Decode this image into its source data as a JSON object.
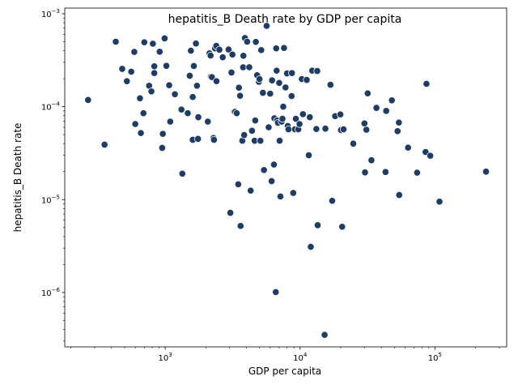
{
  "chart_data": {
    "type": "scatter",
    "title": "hepatitis_B Death rate by GDP per capita",
    "xlabel": "GDP per capita",
    "ylabel": "hepatitis_B Death rate",
    "xscale": "log",
    "yscale": "log",
    "xlim": [
      180,
      340000
    ],
    "ylim": [
      2.6e-07,
      0.00115
    ],
    "grid": false,
    "point_color": "#1f3c64",
    "x_ticks": [
      {
        "value": 1000,
        "base": "10",
        "exp": "3"
      },
      {
        "value": 10000,
        "base": "10",
        "exp": "4"
      },
      {
        "value": 100000,
        "base": "10",
        "exp": "5"
      }
    ],
    "y_ticks": [
      {
        "value": 1e-06,
        "base": "10",
        "exp": "−6"
      },
      {
        "value": 1e-05,
        "base": "10",
        "exp": "−5"
      },
      {
        "value": 0.0001,
        "base": "10",
        "exp": "−4"
      },
      {
        "value": 0.001,
        "base": "10",
        "exp": "−3"
      }
    ],
    "points": [
      [
        268,
        0.000118
      ],
      [
        355,
        3.9e-05
      ],
      [
        430,
        0.0005
      ],
      [
        480,
        0.000255
      ],
      [
        520,
        0.000188
      ],
      [
        560,
        0.000238
      ],
      [
        590,
        0.000388
      ],
      [
        600,
        6.5e-05
      ],
      [
        650,
        0.000123
      ],
      [
        660,
        5.2e-05
      ],
      [
        690,
        8.5e-05
      ],
      [
        700,
        0.000493
      ],
      [
        760,
        0.000168
      ],
      [
        790,
        0.000146
      ],
      [
        810,
        0.000476
      ],
      [
        830,
        0.000272
      ],
      [
        830,
        0.00023
      ],
      [
        910,
        0.00039
      ],
      [
        950,
        3.6e-05
      ],
      [
        960,
        5.1e-05
      ],
      [
        990,
        0.000543
      ],
      [
        1020,
        0.000275
      ],
      [
        1070,
        0.00017
      ],
      [
        1090,
        6.9e-05
      ],
      [
        1180,
        0.000136
      ],
      [
        1320,
        9.3e-05
      ],
      [
        1340,
        1.9e-05
      ],
      [
        1470,
        8.5e-05
      ],
      [
        1520,
        0.000215
      ],
      [
        1550,
        0.0004
      ],
      [
        1600,
        4.4e-05
      ],
      [
        1600,
        0.000127
      ],
      [
        1630,
        0.000274
      ],
      [
        1690,
        0.000478
      ],
      [
        1720,
        0.000168
      ],
      [
        1750,
        4.5e-05
      ],
      [
        1760,
        7.7e-05
      ],
      [
        2070,
        6.9e-05
      ],
      [
        2130,
        0.000375
      ],
      [
        2170,
        0.000355
      ],
      [
        2180,
        0.00021
      ],
      [
        2220,
        0.000208
      ],
      [
        2280,
        4.6e-05
      ],
      [
        2300,
        4.4e-05
      ],
      [
        2340,
        0.000424
      ],
      [
        2390,
        0.000451
      ],
      [
        2400,
        0.000188
      ],
      [
        2520,
        0.00041
      ],
      [
        2670,
        0.00034
      ],
      [
        2950,
        0.000412
      ],
      [
        3040,
        7.2e-06
      ],
      [
        3100,
        0.000233
      ],
      [
        3150,
        0.000364
      ],
      [
        3250,
        8.8e-05
      ],
      [
        3300,
        8.8e-05
      ],
      [
        3390,
        8.5e-05
      ],
      [
        3480,
        1.46e-05
      ],
      [
        3520,
        0.00016
      ],
      [
        3590,
        0.000131
      ],
      [
        3620,
        5.2e-06
      ],
      [
        3730,
        4.3e-05
      ],
      [
        3780,
        0.000265
      ],
      [
        3800,
        0.000353
      ],
      [
        3850,
        4.95e-05
      ],
      [
        3900,
        0.000548
      ],
      [
        4050,
        0.0005
      ],
      [
        4200,
        0.000266
      ],
      [
        4300,
        1.25e-05
      ],
      [
        4400,
        5.5e-05
      ],
      [
        4600,
        4.3e-05
      ],
      [
        4650,
        7.1e-05
      ],
      [
        4700,
        0.000498
      ],
      [
        4800,
        0.000218
      ],
      [
        4950,
        0.000185
      ],
      [
        5000,
        0.000198
      ],
      [
        5080,
        4.3e-05
      ],
      [
        5150,
        0.000406
      ],
      [
        5300,
        0.000141
      ],
      [
        5400,
        2.08e-05
      ],
      [
        5650,
        0.00074
      ],
      [
        5850,
        6e-05
      ],
      [
        6000,
        0.000138
      ],
      [
        6150,
        1.58e-05
      ],
      [
        6200,
        0.000192
      ],
      [
        6400,
        2.38e-05
      ],
      [
        6450,
        7.5e-05
      ],
      [
        6600,
        1.01e-06
      ],
      [
        6650,
        0.000424
      ],
      [
        6700,
        0.000244
      ],
      [
        6750,
        7.1e-05
      ],
      [
        6850,
        6.7e-05
      ],
      [
        7000,
        0.00018
      ],
      [
        7050,
        4.3e-05
      ],
      [
        7150,
        1.08e-05
      ],
      [
        7300,
        6.9e-05
      ],
      [
        7400,
        7.4e-05
      ],
      [
        7500,
        0.0001
      ],
      [
        7600,
        0.000428
      ],
      [
        7800,
        0.000161
      ],
      [
        8000,
        0.000228
      ],
      [
        8100,
        6.2e-05
      ],
      [
        8200,
        5.7e-05
      ],
      [
        8650,
        0.00013
      ],
      [
        8700,
        0.00023
      ],
      [
        8900,
        1.18e-05
      ],
      [
        9150,
        5.7e-05
      ],
      [
        9300,
        7.4e-05
      ],
      [
        9700,
        5.7e-05
      ],
      [
        9900,
        6.5e-05
      ],
      [
        10300,
        0.000198
      ],
      [
        10500,
        8.3e-05
      ],
      [
        11200,
        0.000194
      ],
      [
        11600,
        3e-05
      ],
      [
        11800,
        7.7e-05
      ],
      [
        12000,
        3.1e-06
      ],
      [
        12300,
        0.000244
      ],
      [
        13200,
        5.75e-05
      ],
      [
        13400,
        0.000242
      ],
      [
        13500,
        5.3e-06
      ],
      [
        15200,
        3.5e-07
      ],
      [
        15400,
        5.8e-05
      ],
      [
        16800,
        0.000172
      ],
      [
        17300,
        9.7e-06
      ],
      [
        18200,
        7.9e-05
      ],
      [
        19900,
        8.25e-05
      ],
      [
        20100,
        5.6e-05
      ],
      [
        20500,
        5.1e-06
      ],
      [
        21000,
        5.7e-05
      ],
      [
        24800,
        4e-05
      ],
      [
        30000,
        6.6e-05
      ],
      [
        30300,
        1.96e-05
      ],
      [
        31000,
        5.65e-05
      ],
      [
        31700,
        0.000139
      ],
      [
        33800,
        2.65e-05
      ],
      [
        36800,
        9.7e-05
      ],
      [
        43000,
        1.98e-05
      ],
      [
        43500,
        9e-05
      ],
      [
        47900,
        0.000117
      ],
      [
        52800,
        5.45e-05
      ],
      [
        54000,
        6.75e-05
      ],
      [
        54300,
        1.12e-05
      ],
      [
        63200,
        3.62e-05
      ],
      [
        73700,
        1.95e-05
      ],
      [
        85200,
        3.25e-05
      ],
      [
        86500,
        0.000176
      ],
      [
        92300,
        2.96e-05
      ],
      [
        108000,
        9.5e-06
      ],
      [
        239000,
        2e-05
      ]
    ]
  }
}
